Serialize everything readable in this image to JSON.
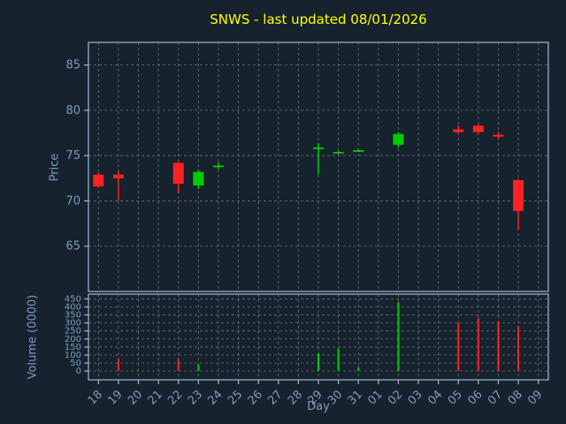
{
  "chart_data": {
    "type": "candlestick",
    "title": "SNWS - last updated 08/01/2026",
    "xlabel": "Day",
    "ylabel_price": "Price",
    "ylabel_volume": "Volume (0000)",
    "grid": "dashed",
    "legend": "none",
    "price_axis": {
      "min": 60.0,
      "max": 87.5,
      "ticks": [
        65,
        70,
        75,
        80,
        85
      ]
    },
    "volume_axis": {
      "min": -55,
      "max": 480,
      "ticks": [
        0,
        50,
        100,
        150,
        200,
        250,
        300,
        350,
        400,
        450
      ]
    },
    "days": [
      "18",
      "19",
      "20",
      "21",
      "22",
      "23",
      "24",
      "25",
      "26",
      "27",
      "28",
      "29",
      "30",
      "31",
      "01",
      "02",
      "03",
      "04",
      "05",
      "06",
      "07",
      "08",
      "09"
    ],
    "candles": [
      {
        "day": "18",
        "open": 72.9,
        "high": 73.1,
        "low": 71.5,
        "close": 71.6,
        "dir": "down"
      },
      {
        "day": "19",
        "open": 72.9,
        "high": 73.3,
        "low": 70.0,
        "close": 72.5,
        "dir": "down"
      },
      {
        "day": "22",
        "open": 74.2,
        "high": 74.3,
        "low": 70.9,
        "close": 71.9,
        "dir": "down"
      },
      {
        "day": "23",
        "open": 71.7,
        "high": 73.4,
        "low": 71.3,
        "close": 73.2,
        "dir": "up"
      },
      {
        "day": "24",
        "open": 73.8,
        "high": 74.3,
        "low": 73.5,
        "close": 73.9,
        "dir": "up"
      },
      {
        "day": "29",
        "open": 75.8,
        "high": 76.4,
        "low": 72.9,
        "close": 75.9,
        "dir": "up"
      },
      {
        "day": "30",
        "open": 75.3,
        "high": 75.5,
        "low": 75.2,
        "close": 75.4,
        "dir": "up"
      },
      {
        "day": "31",
        "open": 75.5,
        "high": 75.7,
        "low": 75.4,
        "close": 75.6,
        "dir": "up"
      },
      {
        "day": "02",
        "open": 76.2,
        "high": 77.6,
        "low": 75.9,
        "close": 77.4,
        "dir": "up"
      },
      {
        "day": "05",
        "open": 77.9,
        "high": 78.3,
        "low": 77.4,
        "close": 77.6,
        "dir": "down"
      },
      {
        "day": "06",
        "open": 78.3,
        "high": 78.6,
        "low": 77.4,
        "close": 77.6,
        "dir": "down"
      },
      {
        "day": "07",
        "open": 77.3,
        "high": 77.6,
        "low": 76.9,
        "close": 77.1,
        "dir": "down"
      },
      {
        "day": "08",
        "open": 72.3,
        "high": 72.4,
        "low": 66.8,
        "close": 68.9,
        "dir": "down"
      }
    ],
    "volumes": [
      {
        "day": "19",
        "value": 75,
        "dir": "down"
      },
      {
        "day": "22",
        "value": 75,
        "dir": "down"
      },
      {
        "day": "23",
        "value": 40,
        "dir": "up"
      },
      {
        "day": "29",
        "value": 110,
        "dir": "up"
      },
      {
        "day": "30",
        "value": 140,
        "dir": "up"
      },
      {
        "day": "31",
        "value": 25,
        "dir": "up"
      },
      {
        "day": "02",
        "value": 430,
        "dir": "up"
      },
      {
        "day": "05",
        "value": 300,
        "dir": "down"
      },
      {
        "day": "06",
        "value": 330,
        "dir": "down"
      },
      {
        "day": "07",
        "value": 310,
        "dir": "down"
      },
      {
        "day": "08",
        "value": 280,
        "dir": "down"
      }
    ],
    "colors": {
      "background": "#16222e",
      "frame": "#9fb9d0",
      "grid": "#6e6e6e",
      "ticklabel": "#7d9cbe",
      "title": "#ffff00",
      "up": "#00cc00",
      "down": "#ff2222"
    }
  }
}
